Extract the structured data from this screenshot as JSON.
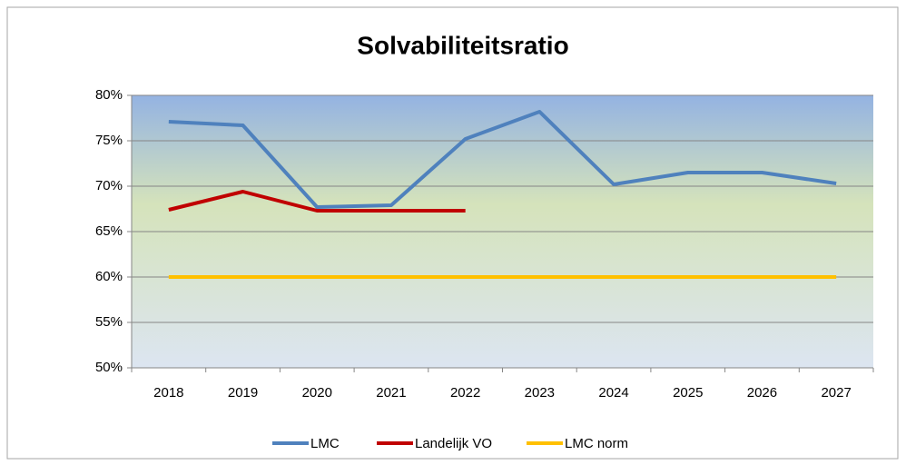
{
  "chart_data": {
    "type": "line",
    "title": "Solvabiliteitsratio",
    "categories": [
      "2018",
      "2019",
      "2020",
      "2021",
      "2022",
      "2023",
      "2024",
      "2025",
      "2026",
      "2027"
    ],
    "series": [
      {
        "name": "LMC",
        "color": "#4f81bd",
        "values": [
          77.1,
          76.7,
          67.7,
          67.9,
          75.2,
          78.2,
          70.2,
          71.5,
          71.5,
          70.3
        ]
      },
      {
        "name": "Landelijk VO",
        "color": "#c00000",
        "values": [
          67.4,
          69.4,
          67.3,
          67.3,
          67.3,
          null,
          null,
          null,
          null,
          null
        ]
      },
      {
        "name": "LMC norm",
        "color": "#ffc000",
        "values": [
          60,
          60,
          60,
          60,
          60,
          60,
          60,
          60,
          60,
          60
        ]
      }
    ],
    "ylim": [
      50,
      80
    ],
    "yticks": [
      {
        "value": 50,
        "label": "50%"
      },
      {
        "value": 55,
        "label": "55%"
      },
      {
        "value": 60,
        "label": "60%"
      },
      {
        "value": 65,
        "label": "65%"
      },
      {
        "value": 70,
        "label": "70%"
      },
      {
        "value": 75,
        "label": "75%"
      },
      {
        "value": 80,
        "label": "80%"
      }
    ],
    "grid": true,
    "legend": "bottom"
  }
}
